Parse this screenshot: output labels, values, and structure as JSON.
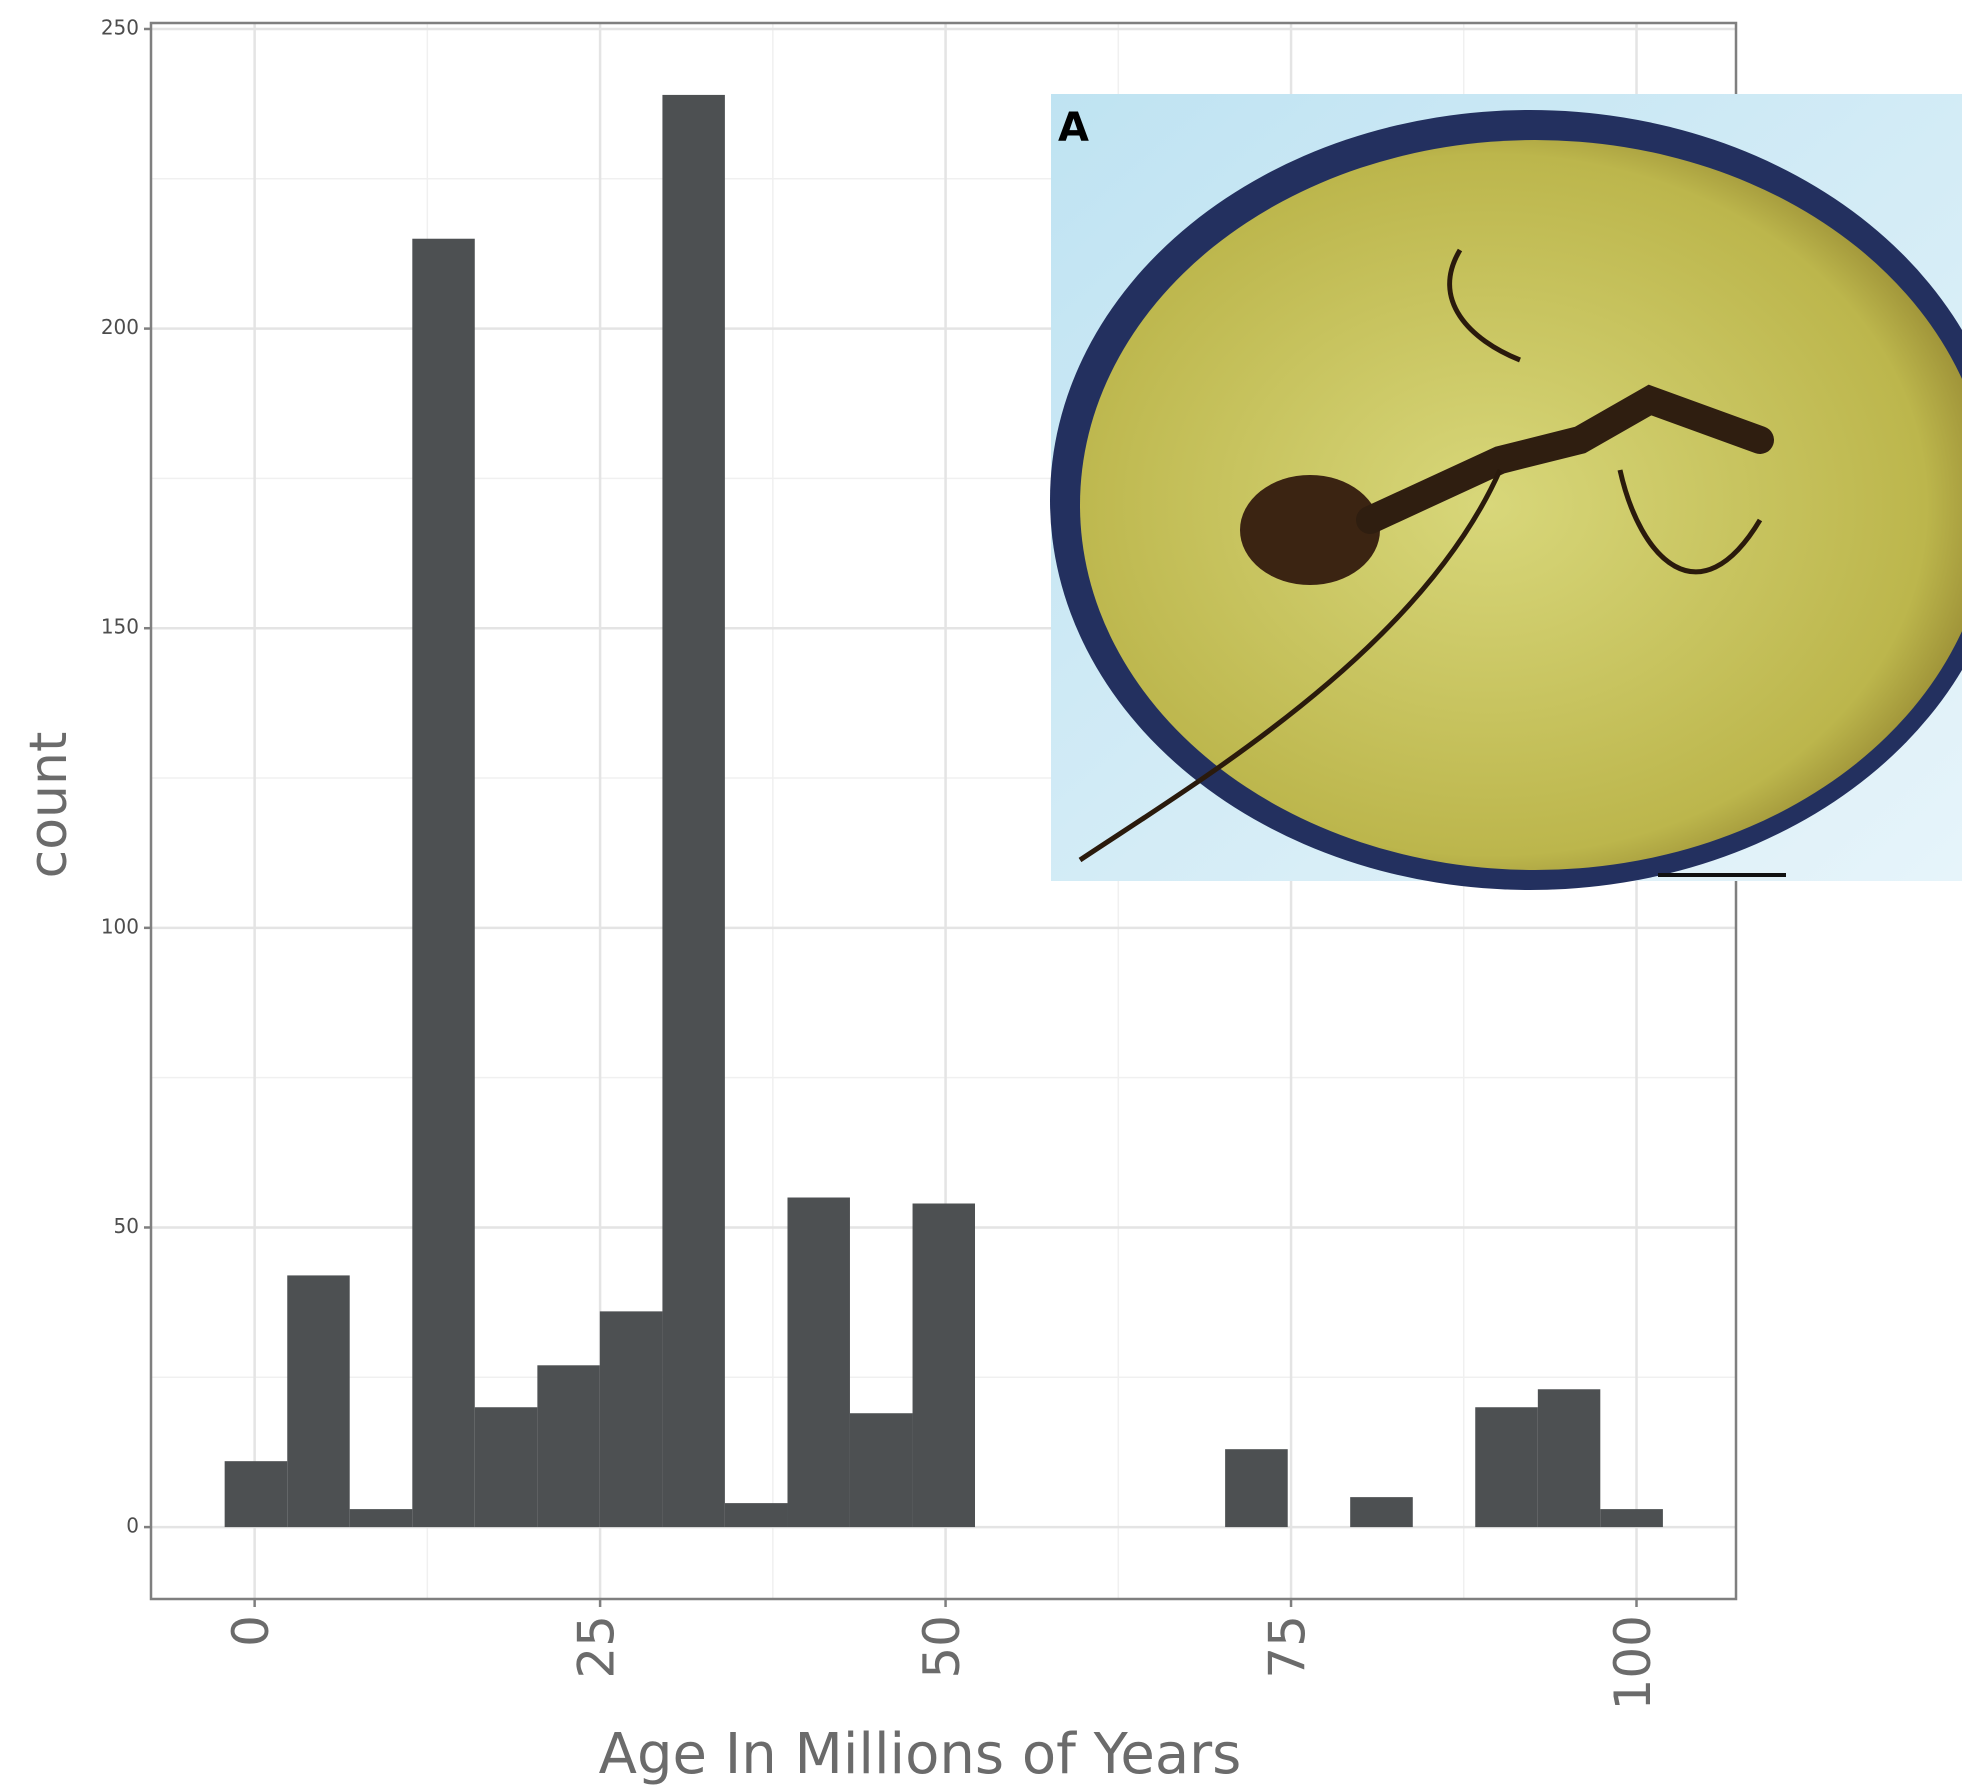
{
  "chart_data": {
    "type": "histogram",
    "x_label": "Age In Millions of Years",
    "y_label": "count",
    "bins": [
      -2.17,
      2.36,
      6.88,
      11.41,
      15.93,
      20.46,
      24.98,
      29.51,
      34.03,
      38.56,
      43.08,
      47.61,
      52.13,
      56.66,
      61.18,
      65.71,
      70.23,
      74.76,
      79.28,
      83.81,
      88.33,
      92.86,
      97.38,
      101.91
    ],
    "values": [
      11,
      42,
      3,
      215,
      20,
      27,
      36,
      239,
      4,
      55,
      19,
      54,
      0,
      0,
      0,
      0,
      13,
      0,
      5,
      0,
      20,
      23,
      3
    ],
    "color": "#4d5052",
    "xlim": [
      -7.5,
      107.2
    ],
    "ylim": [
      -12,
      251
    ],
    "xticks": [
      0,
      25,
      50,
      75,
      100
    ],
    "yticks": [
      0,
      50,
      100,
      150,
      200,
      250
    ],
    "grid": true,
    "inset_label": "A"
  }
}
